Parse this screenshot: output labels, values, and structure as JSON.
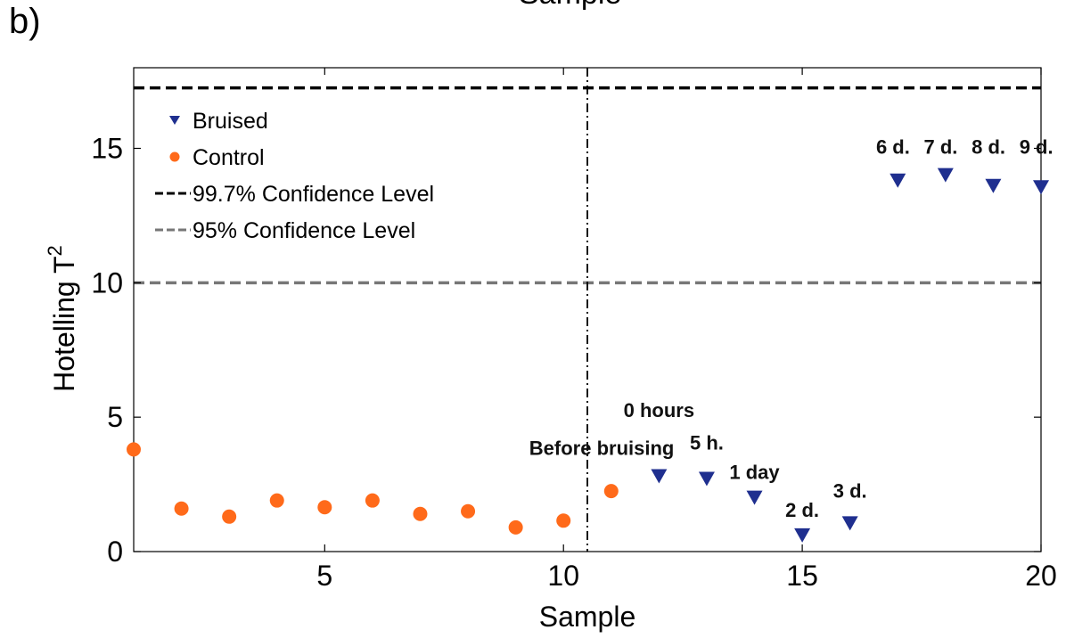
{
  "panel_label": "b)",
  "top_title": "Sample",
  "chart_data": {
    "type": "scatter",
    "title": "",
    "xlabel": "Sample",
    "ylabel": "Hotelling T",
    "ylabel_superscript": "2",
    "xlim": [
      1,
      20
    ],
    "ylim": [
      0,
      18
    ],
    "xticks": [
      5,
      10,
      15,
      20
    ],
    "yticks": [
      0,
      5,
      10,
      15
    ],
    "grid": false,
    "legend_position": "top-left",
    "colors": {
      "bruised": "#1f2f8f",
      "control": "#ff6a1a",
      "limit_997": "#000000",
      "limit_95": "#777777",
      "divider": "#000000"
    },
    "series": [
      {
        "name": "Control",
        "marker": "circle",
        "x": [
          1,
          2,
          3,
          4,
          5,
          6,
          7,
          8,
          9,
          10,
          11
        ],
        "y": [
          3.8,
          1.6,
          1.3,
          1.9,
          1.65,
          1.9,
          1.4,
          1.5,
          0.9,
          1.15,
          2.25
        ]
      },
      {
        "name": "Bruised",
        "marker": "triangle-down",
        "x": [
          12,
          13,
          14,
          15,
          16,
          17,
          18,
          19,
          20
        ],
        "y": [
          2.8,
          2.7,
          2.0,
          0.6,
          1.05,
          13.8,
          14.0,
          13.6,
          13.55
        ]
      }
    ],
    "reference_lines": [
      {
        "name": "99.7% Confidence Level",
        "y": 17.25,
        "style": "dashed"
      },
      {
        "name": "95% Confidence Level",
        "y": 10.0,
        "style": "dashed"
      }
    ],
    "vertical_lines": [
      {
        "x": 10.5,
        "style": "dash-dot"
      }
    ],
    "annotations": [
      {
        "text": "Before bruising",
        "x": 10.8,
        "y": 3.6
      },
      {
        "text": "0 hours",
        "x": 12.0,
        "y": 5.0
      },
      {
        "text": "5 h.",
        "x": 13.0,
        "y": 3.8
      },
      {
        "text": "1 day",
        "x": 14.0,
        "y": 2.7
      },
      {
        "text": "2 d.",
        "x": 15.0,
        "y": 1.3
      },
      {
        "text": "3 d.",
        "x": 16.0,
        "y": 2.0
      },
      {
        "text": "6 d.",
        "x": 16.9,
        "y": 14.8
      },
      {
        "text": "7 d.",
        "x": 17.9,
        "y": 14.8
      },
      {
        "text": "8 d.",
        "x": 18.9,
        "y": 14.8
      },
      {
        "text": "9 d.",
        "x": 19.9,
        "y": 14.8
      }
    ],
    "legend": [
      {
        "label": "Bruised",
        "kind": "triangle-down"
      },
      {
        "label": "Control",
        "kind": "circle"
      },
      {
        "label": "99.7% Confidence Level",
        "kind": "line-dashed-black"
      },
      {
        "label": "95% Confidence Level",
        "kind": "line-dashed-gray"
      }
    ]
  }
}
